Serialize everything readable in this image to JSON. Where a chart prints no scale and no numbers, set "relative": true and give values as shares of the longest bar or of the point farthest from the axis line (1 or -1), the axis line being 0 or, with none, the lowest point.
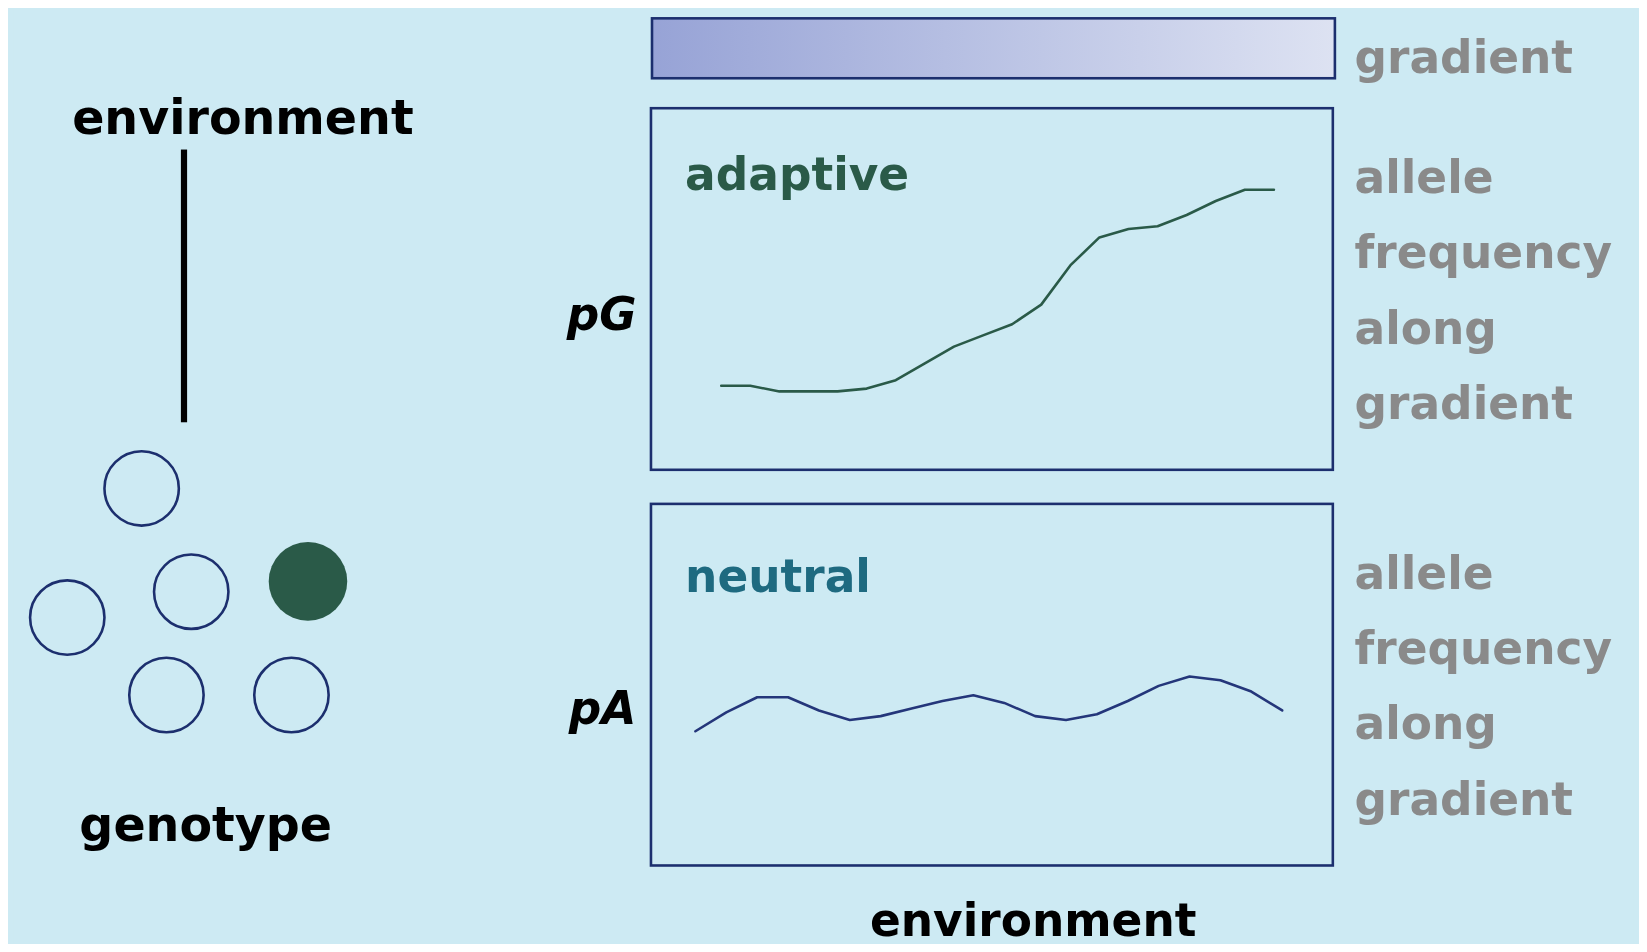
{
  "chart_data": [
    {
      "type": "other",
      "annotations": [
        "environment",
        "genotype"
      ]
    },
    {
      "type": "line",
      "title": "adaptive",
      "ylabel": "pG",
      "relative": true,
      "annotations": [
        "gradient",
        "allele frequency along gradient"
      ],
      "categories": [
        null,
        null,
        null,
        null,
        null,
        null,
        null,
        null,
        null,
        null,
        null,
        null,
        null,
        null,
        null,
        null,
        null,
        null,
        null,
        null
      ],
      "series": [
        {
          "color": "#2a5a48",
          "values": [
            0.3,
            0.3,
            0.28,
            0.28,
            0.28,
            0.29,
            0.32,
            0.38,
            0.44,
            0.48,
            0.52,
            0.59,
            0.73,
            0.83,
            0.86,
            0.87,
            0.91,
            0.96,
            1,
            1
          ]
        }
      ]
    },
    {
      "type": "line",
      "title": "neutral",
      "ylabel": "pA",
      "xlabel": "environment",
      "relative": true,
      "annotations": [
        "allele frequency along gradient"
      ],
      "categories": [
        null,
        null,
        null,
        null,
        null,
        null,
        null,
        null,
        null,
        null,
        null,
        null,
        null,
        null,
        null,
        null,
        null,
        null,
        null,
        null
      ],
      "series": [
        {
          "color": "#24367a",
          "values": [
            0.71,
            0.81,
            0.89,
            0.89,
            0.82,
            0.77,
            0.79,
            0.83,
            0.87,
            0.9,
            0.86,
            0.79,
            0.77,
            0.8,
            0.87,
            0.95,
            1,
            0.98,
            0.92,
            0.82
          ]
        }
      ]
    }
  ]
}
